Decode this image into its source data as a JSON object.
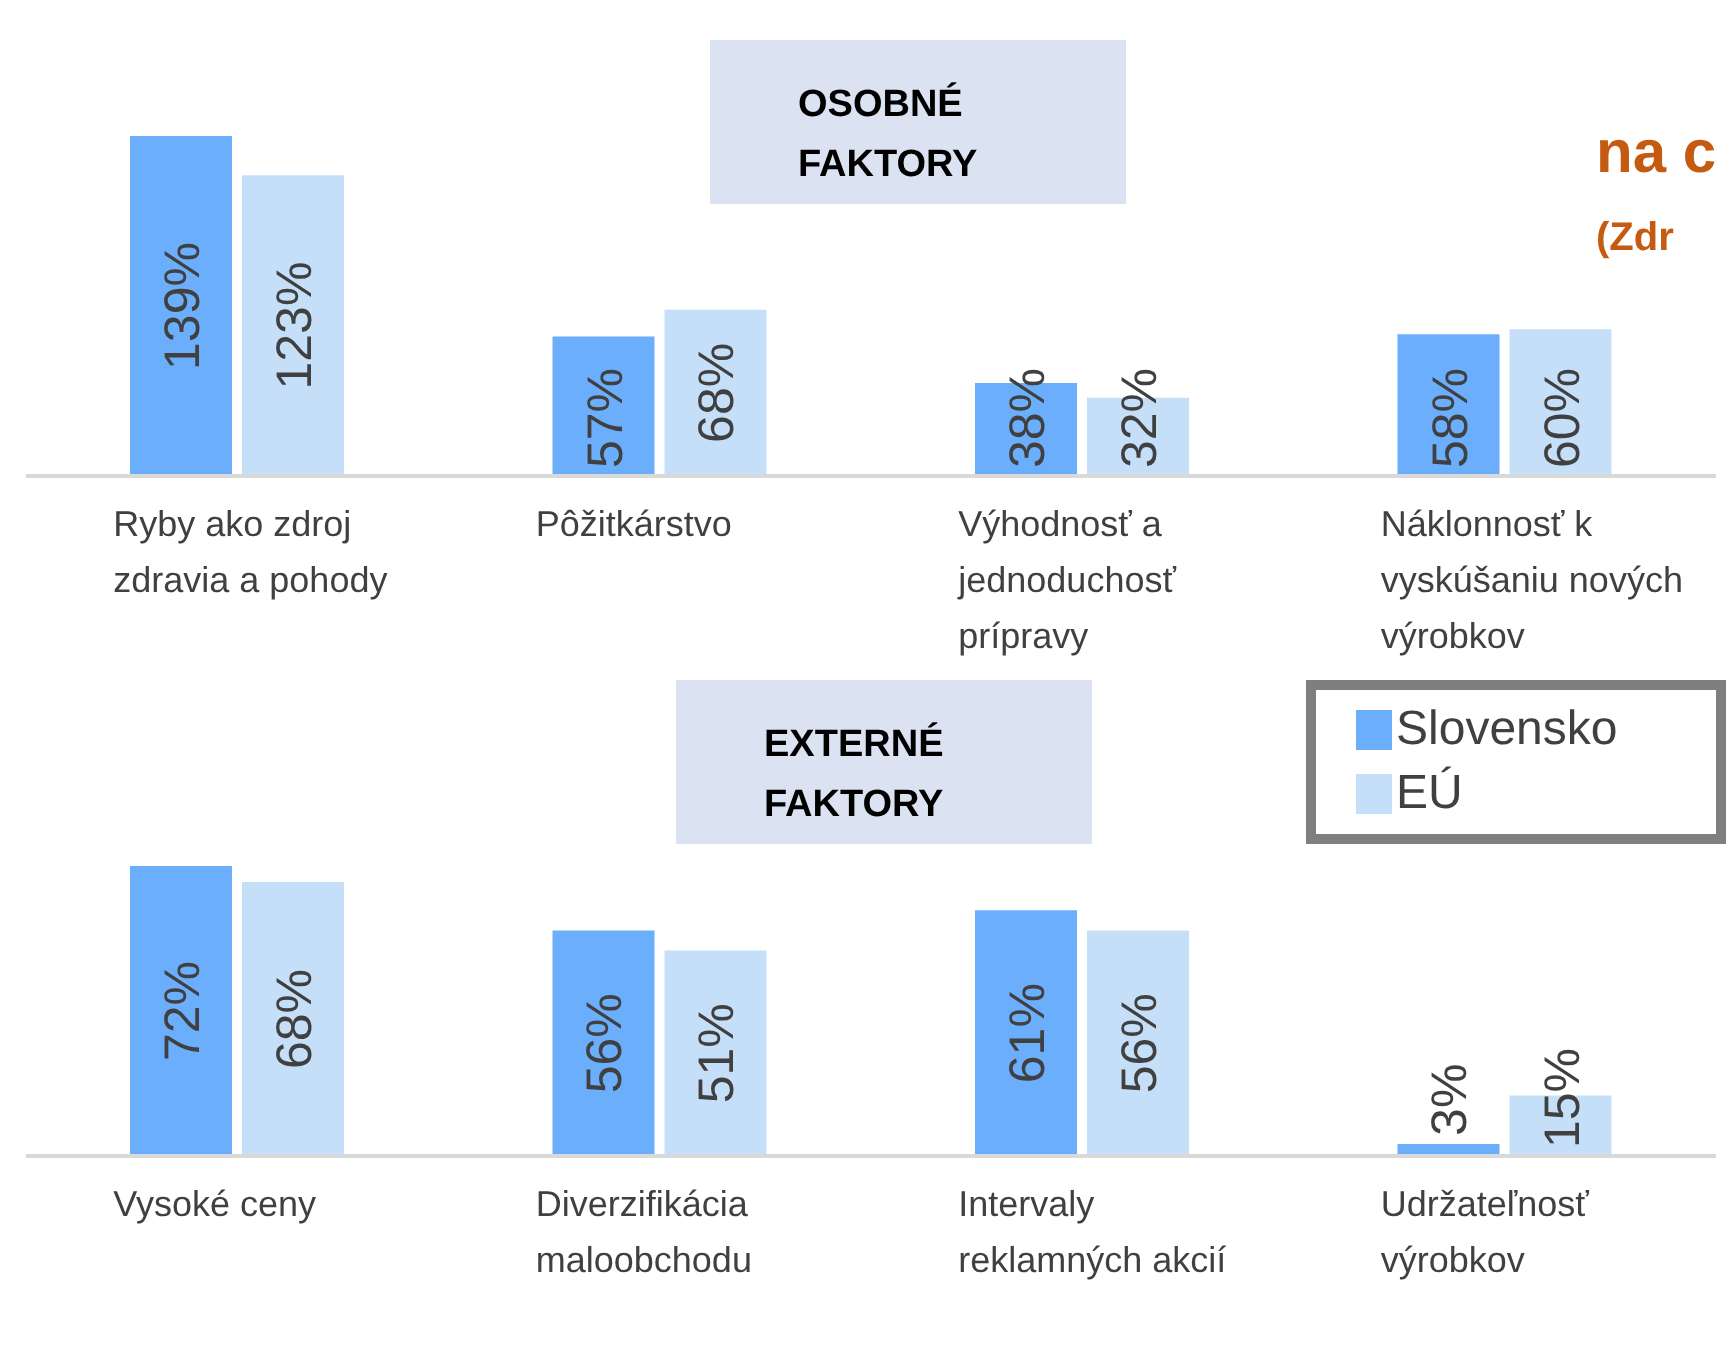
{
  "chart_data": [
    {
      "type": "bar",
      "title": "OSOBNÉ FAKTORY",
      "categories": [
        "Ryby ako zdroj zdravia a pohody",
        "Pôžitkárstvo",
        "Výhodnosť a jednoduchosť prípravy",
        "Náklonnosť k vyskúšaniu nových výrobkov"
      ],
      "series": [
        {
          "color": "#6aaefc",
          "values": [
            139,
            57,
            38,
            58
          ],
          "value_labels": [
            "139%",
            "57%",
            "38%",
            "58%"
          ]
        },
        {
          "color": "#c5dff9",
          "values": [
            123,
            68,
            32,
            60
          ],
          "value_labels": [
            "123%",
            "68%",
            "32%",
            "60%"
          ]
        }
      ],
      "annotations": [
        "na c",
        "(Zdr"
      ],
      "legend": false
    },
    {
      "type": "bar",
      "title": "EXTERNÉ FAKTORY",
      "categories": [
        "Vysoké ceny",
        "Diverzifikácia maloobchodu",
        "Intervaly reklamných akcií",
        "Udržateľnosť výrobkov"
      ],
      "series": [
        {
          "name": "Slovensko",
          "color": "#6aaefc",
          "values": [
            72,
            56,
            61,
            3
          ],
          "value_labels": [
            "72%",
            "56%",
            "61%",
            "3%"
          ]
        },
        {
          "name": "EÚ",
          "color": "#c5dff9",
          "values": [
            68,
            51,
            56,
            15
          ],
          "value_labels": [
            "68%",
            "51%",
            "56%",
            "15%"
          ]
        }
      ],
      "legend": "top right"
    }
  ]
}
